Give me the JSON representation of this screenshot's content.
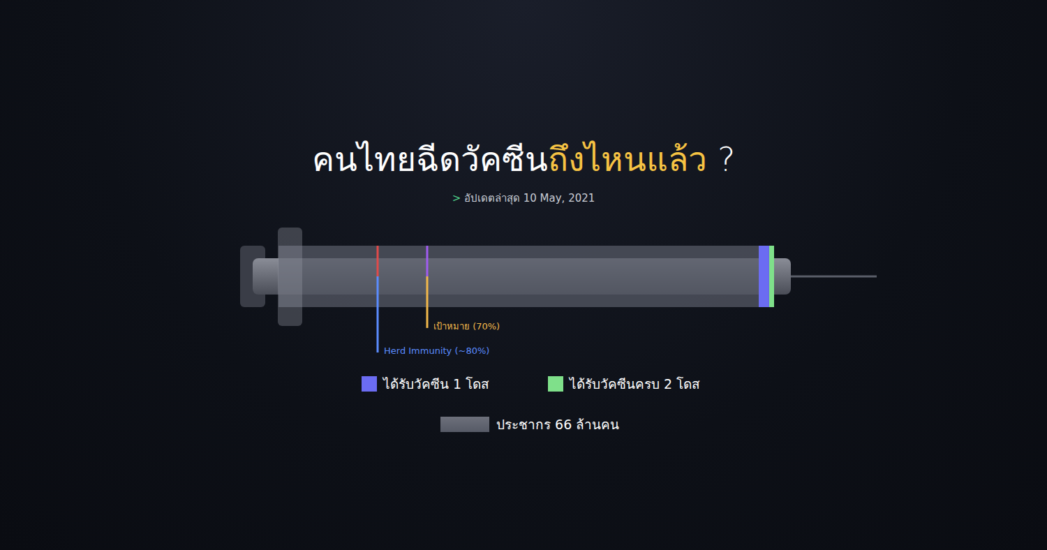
{
  "chart_data": {
    "type": "bar",
    "orientation": "horizontal",
    "stacked": true,
    "title": "คนไทยฉีดวัคซีนถึงไหนแล้ว ?",
    "title_highlight": "ถึงไหนแล้ว",
    "subtitle": "> อัปเดตล่าสุด 10 May, 2021",
    "categories": [
      null
    ],
    "series": [
      {
        "name": "ได้รับวัคซีนครบ 2 โดส",
        "color": "#7fe08a",
        "values": [
          1.0
        ]
      },
      {
        "name": "ได้รับวัคซีน 1 โดส",
        "color": "#6b6cf2",
        "values": [
          2.1
        ]
      }
    ],
    "total": {
      "name": "ประชากร 66 ล้านคน",
      "color": "#565a66",
      "values": [
        100
      ]
    },
    "annotations": [
      {
        "text": "Herd Immunity (~80%)",
        "value": 80,
        "color": "#5b8cff"
      },
      {
        "text": "เป้าหมาย (70%)",
        "value": 70,
        "color": "#f2b84b"
      }
    ],
    "xlim": [
      100,
      0
    ],
    "tick_labels": false,
    "grid": false
  }
}
